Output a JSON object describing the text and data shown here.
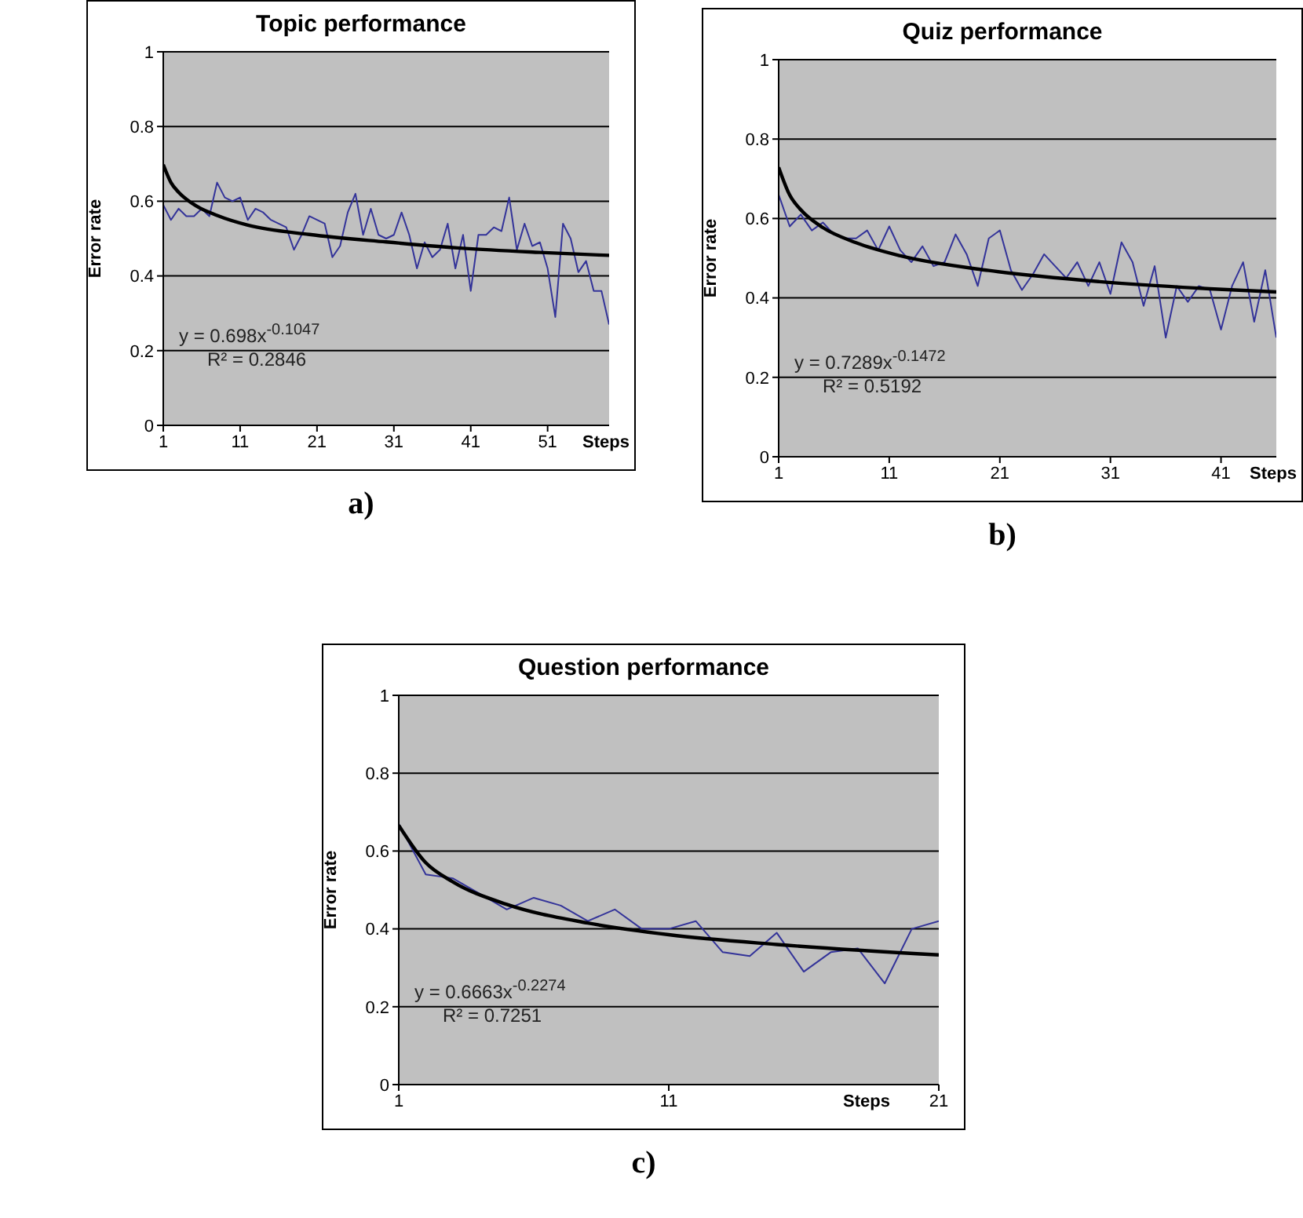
{
  "chart_data": [
    {
      "type": "line",
      "title": "Topic performance",
      "xlabel": "Steps",
      "ylabel": "Error rate",
      "x": [
        1,
        2,
        3,
        4,
        5,
        6,
        7,
        8,
        9,
        10,
        11,
        12,
        13,
        14,
        15,
        16,
        17,
        18,
        19,
        20,
        21,
        22,
        23,
        24,
        25,
        26,
        27,
        28,
        29,
        30,
        31,
        32,
        33,
        34,
        35,
        36,
        37,
        38,
        39,
        40,
        41,
        42,
        43,
        44,
        45,
        46,
        47,
        48,
        49,
        50,
        51,
        52,
        53,
        54,
        55,
        56,
        57,
        58,
        59
      ],
      "series": [
        {
          "color": "#333399",
          "values": [
            0.59,
            0.55,
            0.58,
            0.56,
            0.56,
            0.58,
            0.56,
            0.65,
            0.61,
            0.6,
            0.61,
            0.55,
            0.58,
            0.57,
            0.55,
            0.54,
            0.53,
            0.47,
            0.51,
            0.56,
            0.55,
            0.54,
            0.45,
            0.48,
            0.57,
            0.62,
            0.51,
            0.58,
            0.51,
            0.5,
            0.51,
            0.57,
            0.51,
            0.42,
            0.49,
            0.45,
            0.47,
            0.54,
            0.42,
            0.51,
            0.36,
            0.51,
            0.51,
            0.53,
            0.52,
            0.61,
            0.47,
            0.54,
            0.48,
            0.49,
            0.42,
            0.29,
            0.54,
            0.5,
            0.41,
            0.44,
            0.36,
            0.36,
            0.27
          ]
        },
        {
          "type": "line",
          "color": "#000000",
          "x": [
            1,
            2,
            3,
            5,
            8,
            12,
            20,
            30,
            40,
            50,
            59
          ],
          "values": [
            0.698,
            0.65,
            0.624,
            0.591,
            0.562,
            0.536,
            0.511,
            0.491,
            0.474,
            0.463,
            0.455
          ]
        }
      ],
      "xlim": [
        1,
        59
      ],
      "xticks": [
        1,
        11,
        21,
        31,
        41,
        51
      ],
      "ylim": [
        0,
        1
      ],
      "yticks": [
        0,
        0.2,
        0.4,
        0.6,
        0.8,
        1
      ],
      "grid": "y",
      "annotations": [
        "y = 0.698x$^{-0.1047}$",
        "R² = 0.2846",
        "a)"
      ]
    },
    {
      "type": "line",
      "title": "Quiz performance",
      "xlabel": "Steps",
      "ylabel": "Error rate",
      "x": [
        1,
        2,
        3,
        4,
        5,
        6,
        7,
        8,
        9,
        10,
        11,
        12,
        13,
        14,
        15,
        16,
        17,
        18,
        19,
        20,
        21,
        22,
        23,
        24,
        25,
        26,
        27,
        28,
        29,
        30,
        31,
        32,
        33,
        34,
        35,
        36,
        37,
        38,
        39,
        40,
        41,
        42,
        43,
        44,
        45,
        46
      ],
      "series": [
        {
          "color": "#333399",
          "values": [
            0.66,
            0.58,
            0.61,
            0.57,
            0.59,
            0.56,
            0.55,
            0.55,
            0.57,
            0.52,
            0.58,
            0.52,
            0.49,
            0.53,
            0.48,
            0.49,
            0.56,
            0.51,
            0.43,
            0.55,
            0.57,
            0.47,
            0.42,
            0.46,
            0.51,
            0.48,
            0.45,
            0.49,
            0.43,
            0.49,
            0.41,
            0.54,
            0.49,
            0.38,
            0.48,
            0.3,
            0.43,
            0.39,
            0.43,
            0.42,
            0.32,
            0.43,
            0.49,
            0.34,
            0.47,
            0.3
          ]
        },
        {
          "type": "line",
          "color": "#000000",
          "x": [
            1,
            2,
            3,
            5,
            8,
            12,
            20,
            30,
            40,
            46
          ],
          "values": [
            0.729,
            0.659,
            0.622,
            0.577,
            0.539,
            0.506,
            0.469,
            0.441,
            0.423,
            0.415
          ]
        }
      ],
      "xlim": [
        1,
        46
      ],
      "xticks": [
        1,
        11,
        21,
        31,
        41
      ],
      "ylim": [
        0,
        1
      ],
      "yticks": [
        0,
        0.2,
        0.4,
        0.6,
        0.8,
        1
      ],
      "grid": "y",
      "annotations": [
        "y = 0.7289x$^{-0.1472}$",
        "R² = 0.5192",
        "b)"
      ]
    },
    {
      "type": "line",
      "title": "Question performance",
      "xlabel": "Steps",
      "ylabel": "Error rate",
      "x": [
        1,
        2,
        3,
        4,
        5,
        6,
        7,
        8,
        9,
        10,
        11,
        12,
        13,
        14,
        15,
        16,
        17,
        18,
        19,
        20,
        21
      ],
      "series": [
        {
          "color": "#333399",
          "values": [
            0.67,
            0.54,
            0.53,
            0.49,
            0.45,
            0.48,
            0.46,
            0.42,
            0.45,
            0.4,
            0.4,
            0.42,
            0.34,
            0.33,
            0.39,
            0.29,
            0.34,
            0.35,
            0.26,
            0.4,
            0.42
          ]
        },
        {
          "type": "line",
          "color": "#000000",
          "x": [
            1,
            2,
            3,
            5,
            8,
            11,
            15,
            21
          ],
          "values": [
            0.666,
            0.57,
            0.521,
            0.463,
            0.415,
            0.385,
            0.36,
            0.333
          ]
        }
      ],
      "xlim": [
        1,
        21
      ],
      "xticks": [
        1,
        11,
        21
      ],
      "ylim": [
        0,
        1
      ],
      "yticks": [
        0,
        0.2,
        0.4,
        0.6,
        0.8,
        1
      ],
      "grid": "y",
      "annotations": [
        "y = 0.6663x$^{-0.2274}$",
        "R² = 0.7251",
        "c)"
      ]
    }
  ]
}
